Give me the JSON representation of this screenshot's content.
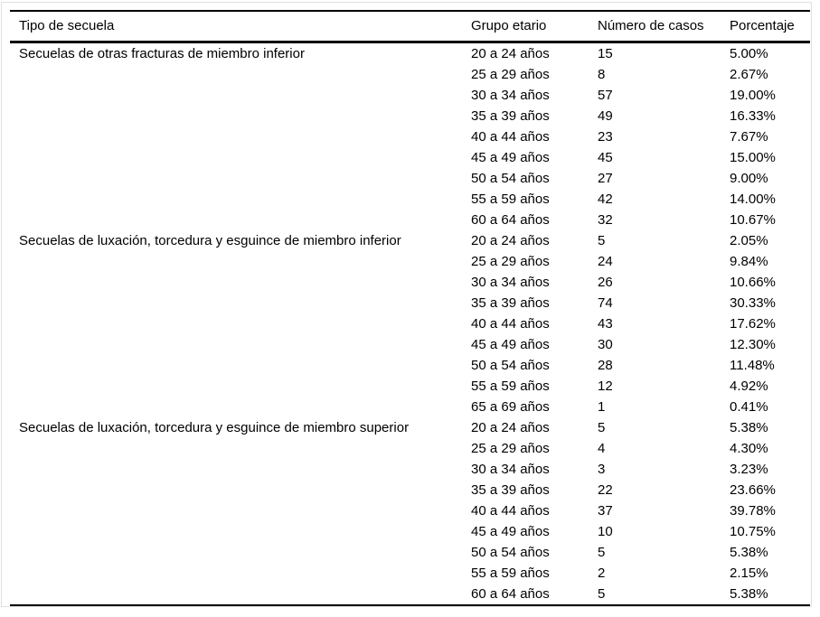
{
  "page": {
    "background": "#ffffff",
    "frame_border_color": "#e0e0e0",
    "rule_color": "#000000",
    "text_color": "#000000"
  },
  "table": {
    "columns": [
      "Tipo de secuela",
      "Grupo etario",
      "Número de casos",
      "Porcentaje"
    ],
    "groups": [
      {
        "tipo": "Secuelas de otras fracturas de miembro inferior",
        "rows": [
          {
            "grupo": "20 a 24 años",
            "casos": "15",
            "porcentaje": "5.00%"
          },
          {
            "grupo": "25 a 29 años",
            "casos": "8",
            "porcentaje": "2.67%"
          },
          {
            "grupo": "30 a 34 años",
            "casos": "57",
            "porcentaje": "19.00%"
          },
          {
            "grupo": "35 a 39 años",
            "casos": "49",
            "porcentaje": "16.33%"
          },
          {
            "grupo": "40 a 44 años",
            "casos": "23",
            "porcentaje": "7.67%"
          },
          {
            "grupo": "45 a 49 años",
            "casos": "45",
            "porcentaje": "15.00%"
          },
          {
            "grupo": "50 a 54 años",
            "casos": "27",
            "porcentaje": "9.00%"
          },
          {
            "grupo": "55 a 59 años",
            "casos": "42",
            "porcentaje": "14.00%"
          },
          {
            "grupo": "60 a 64 años",
            "casos": "32",
            "porcentaje": "10.67%"
          }
        ]
      },
      {
        "tipo": "Secuelas de luxación, torcedura y esguince de miembro inferior",
        "rows": [
          {
            "grupo": "20 a 24 años",
            "casos": "5",
            "porcentaje": "2.05%"
          },
          {
            "grupo": "25 a 29 años",
            "casos": "24",
            "porcentaje": "9.84%"
          },
          {
            "grupo": "30 a 34 años",
            "casos": "26",
            "porcentaje": "10.66%"
          },
          {
            "grupo": "35 a 39 años",
            "casos": "74",
            "porcentaje": "30.33%"
          },
          {
            "grupo": "40 a 44 años",
            "casos": "43",
            "porcentaje": "17.62%"
          },
          {
            "grupo": "45 a 49 años",
            "casos": "30",
            "porcentaje": "12.30%"
          },
          {
            "grupo": "50 a 54 años",
            "casos": "28",
            "porcentaje": "11.48%"
          },
          {
            "grupo": "55 a 59 años",
            "casos": "12",
            "porcentaje": "4.92%"
          },
          {
            "grupo": "65 a 69 años",
            "casos": "1",
            "porcentaje": "0.41%"
          }
        ]
      },
      {
        "tipo": "Secuelas de luxación, torcedura y esguince de miembro superior",
        "rows": [
          {
            "grupo": "20 a 24 años",
            "casos": "5",
            "porcentaje": "5.38%"
          },
          {
            "grupo": "25 a 29 años",
            "casos": "4",
            "porcentaje": "4.30%"
          },
          {
            "grupo": "30 a 34 años",
            "casos": "3",
            "porcentaje": "3.23%"
          },
          {
            "grupo": "35 a 39 años",
            "casos": "22",
            "porcentaje": "23.66%"
          },
          {
            "grupo": "40 a 44 años",
            "casos": "37",
            "porcentaje": "39.78%"
          },
          {
            "grupo": "45 a 49 años",
            "casos": "10",
            "porcentaje": "10.75%"
          },
          {
            "grupo": "50 a 54 años",
            "casos": "5",
            "porcentaje": "5.38%"
          },
          {
            "grupo": "55 a 59 años",
            "casos": "2",
            "porcentaje": "2.15%"
          },
          {
            "grupo": "60 a 64 años",
            "casos": "5",
            "porcentaje": "5.38%"
          }
        ]
      }
    ]
  }
}
